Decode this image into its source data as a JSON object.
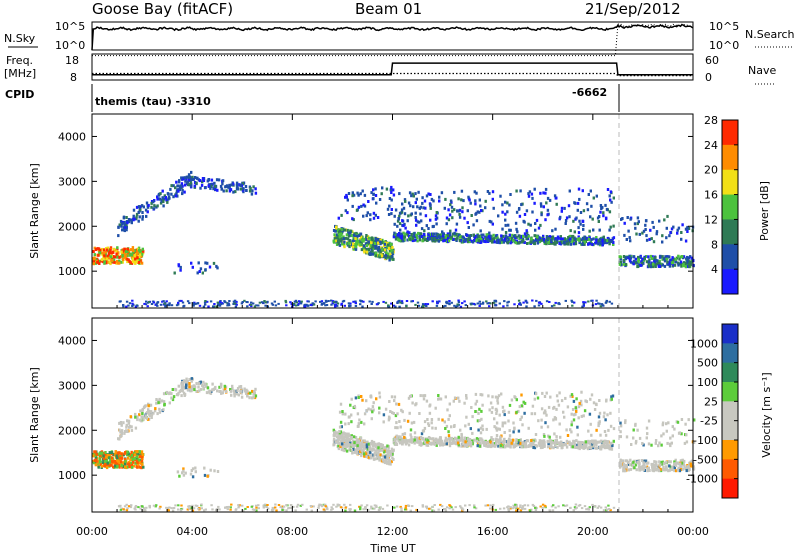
{
  "header": {
    "station": "Goose Bay (fitACF)",
    "beam": "Beam 01",
    "date": "21/Sep/2012"
  },
  "top_panels": {
    "nsky_label": "N.Sky",
    "nsearch_label": "N.Search",
    "freq_label_1": "Freq.",
    "freq_label_2": "[MHz]",
    "nave_label": "Nave",
    "cpid_label": "CPID",
    "left_ticks": [
      "10^5",
      "10^0"
    ],
    "right_ticks": [
      "10^5",
      "10^0"
    ],
    "freq_ticks": [
      "18",
      "8"
    ],
    "nave_ticks": [
      "60",
      "0"
    ],
    "cpid_text_1": "themis (tau) -3310",
    "cpid_text_2": "-6662"
  },
  "chart_data": [
    {
      "type": "heatmap",
      "name": "power",
      "ylabel": "Slant Range [km]",
      "xlabel": "",
      "x_ticks": [
        "00:00",
        "04:00",
        "08:00",
        "12:00",
        "16:00",
        "20:00",
        "00:00"
      ],
      "y_ticks": [
        "1000",
        "2000",
        "3000",
        "4000"
      ],
      "xlim_hours": [
        0,
        24
      ],
      "ylim_km": [
        180,
        4500
      ],
      "colorbar_label": "Power [dB]",
      "colorbar_ticks": [
        "4",
        "8",
        "12",
        "16",
        "20",
        "24",
        "28"
      ],
      "colorbar_colors": [
        "#1a1aff",
        "#1f4fa8",
        "#2f7a55",
        "#4cc23d",
        "#f2e017",
        "#ff8c00",
        "#ff2a00"
      ]
    },
    {
      "type": "heatmap",
      "name": "velocity",
      "ylabel": "Slant Range [km]",
      "xlabel": "Time UT",
      "x_ticks": [
        "00:00",
        "04:00",
        "08:00",
        "12:00",
        "16:00",
        "20:00",
        "00:00"
      ],
      "y_ticks": [
        "1000",
        "2000",
        "3000",
        "4000"
      ],
      "xlim_hours": [
        0,
        24
      ],
      "ylim_km": [
        180,
        4500
      ],
      "colorbar_label": "Velocity [m s⁻¹]",
      "colorbar_ticks": [
        "1000",
        "500",
        "100",
        "25",
        "-25",
        "-100",
        "-500",
        "-1000"
      ],
      "colorbar_colors": [
        "#1a2fc8",
        "#2e6ea0",
        "#2f8a5a",
        "#5ccc3a",
        "#c8c8c0",
        "#c8c8c0",
        "#ff9a00",
        "#ff5a00",
        "#ff1a00"
      ]
    }
  ],
  "colors": {
    "frame": "#000000",
    "dashed_marker": "#bbbbbb",
    "gray_scatter": "#c6c6bf"
  }
}
